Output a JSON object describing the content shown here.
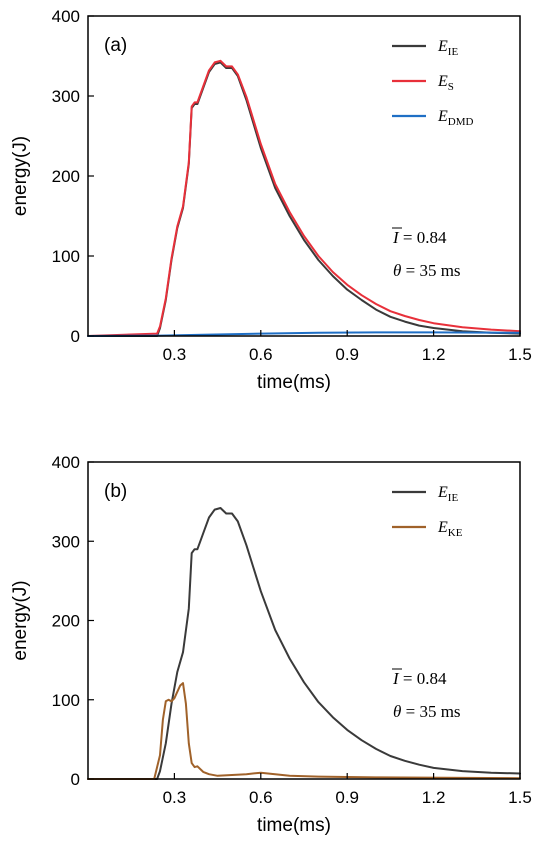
{
  "chart_data": [
    {
      "type": "line",
      "panel_label": "(a)",
      "xlabel": "time(ms)",
      "ylabel": "energy(J)",
      "xlim": [
        0,
        1.5
      ],
      "ylim": [
        0,
        400
      ],
      "xticks": [
        "0.3",
        "0.6",
        "0.9",
        "1.2",
        "1.5"
      ],
      "xtick_values": [
        0.3,
        0.6,
        0.9,
        1.2,
        1.5
      ],
      "yticks": [
        "0",
        "100",
        "200",
        "300",
        "400"
      ],
      "ytick_values": [
        0,
        100,
        200,
        300,
        400
      ],
      "grid": false,
      "legend_position": "top-right",
      "annotations": [
        {
          "symbol": "I",
          "text": " = 0.84"
        },
        {
          "symbol": "θ",
          "text": " = 35 ms"
        }
      ],
      "series": [
        {
          "name": "E",
          "name_sub": "IE",
          "color": "#3a3a3a",
          "x": [
            0,
            0.24,
            0.25,
            0.27,
            0.29,
            0.31,
            0.33,
            0.35,
            0.36,
            0.37,
            0.38,
            0.39,
            0.4,
            0.42,
            0.44,
            0.46,
            0.48,
            0.5,
            0.52,
            0.55,
            0.6,
            0.65,
            0.7,
            0.75,
            0.8,
            0.85,
            0.9,
            0.95,
            1.0,
            1.05,
            1.1,
            1.15,
            1.2,
            1.3,
            1.4,
            1.5
          ],
          "y": [
            0,
            0,
            10,
            45,
            95,
            135,
            160,
            215,
            285,
            290,
            290,
            300,
            310,
            330,
            340,
            342,
            335,
            335,
            325,
            295,
            235,
            185,
            150,
            120,
            95,
            75,
            58,
            45,
            33,
            24,
            18,
            13,
            10,
            6,
            4,
            3
          ]
        },
        {
          "name": "E",
          "name_sub": "S",
          "color": "#e8303a",
          "x": [
            0,
            0.24,
            0.25,
            0.27,
            0.29,
            0.31,
            0.33,
            0.35,
            0.36,
            0.37,
            0.38,
            0.39,
            0.4,
            0.42,
            0.44,
            0.46,
            0.48,
            0.5,
            0.52,
            0.55,
            0.6,
            0.65,
            0.7,
            0.75,
            0.8,
            0.85,
            0.9,
            0.95,
            1.0,
            1.05,
            1.1,
            1.15,
            1.2,
            1.3,
            1.4,
            1.5
          ],
          "y": [
            0,
            3,
            12,
            47,
            97,
            137,
            162,
            217,
            287,
            292,
            292,
            302,
            312,
            332,
            342,
            344,
            337,
            337,
            327,
            299,
            240,
            190,
            155,
            125,
            100,
            80,
            64,
            51,
            40,
            31,
            25,
            20,
            16,
            11,
            8,
            6
          ]
        },
        {
          "name": "E",
          "name_sub": "DMD",
          "color": "#1f6fc5",
          "x": [
            0,
            0.25,
            0.4,
            0.6,
            0.8,
            1.0,
            1.2,
            1.5
          ],
          "y": [
            0,
            0.5,
            1.5,
            3,
            4,
            4.5,
            4.5,
            4
          ]
        }
      ]
    },
    {
      "type": "line",
      "panel_label": "(b)",
      "xlabel": "time(ms)",
      "ylabel": "energy(J)",
      "xlim": [
        0,
        1.5
      ],
      "ylim": [
        0,
        400
      ],
      "xticks": [
        "0.3",
        "0.6",
        "0.9",
        "1.2",
        "1.5"
      ],
      "xtick_values": [
        0.3,
        0.6,
        0.9,
        1.2,
        1.5
      ],
      "yticks": [
        "0",
        "100",
        "200",
        "300",
        "400"
      ],
      "ytick_values": [
        0,
        100,
        200,
        300,
        400
      ],
      "grid": false,
      "legend_position": "top-right",
      "annotations": [
        {
          "symbol": "I",
          "text": " = 0.84"
        },
        {
          "symbol": "θ",
          "text": " = 35 ms"
        }
      ],
      "series": [
        {
          "name": "E",
          "name_sub": "IE",
          "color": "#3a3a3a",
          "x": [
            0,
            0.24,
            0.25,
            0.27,
            0.29,
            0.31,
            0.33,
            0.35,
            0.36,
            0.37,
            0.38,
            0.39,
            0.4,
            0.42,
            0.44,
            0.46,
            0.48,
            0.5,
            0.52,
            0.55,
            0.6,
            0.65,
            0.7,
            0.75,
            0.8,
            0.85,
            0.9,
            0.95,
            1.0,
            1.05,
            1.1,
            1.15,
            1.2,
            1.3,
            1.4,
            1.5
          ],
          "y": [
            0,
            0,
            10,
            45,
            95,
            135,
            160,
            215,
            285,
            290,
            290,
            300,
            310,
            330,
            340,
            342,
            335,
            335,
            325,
            295,
            237,
            188,
            152,
            122,
            97,
            78,
            62,
            49,
            38,
            29,
            23,
            18,
            14,
            10,
            8,
            7
          ]
        },
        {
          "name": "E",
          "name_sub": "KE",
          "color": "#a0622a",
          "x": [
            0,
            0.23,
            0.25,
            0.26,
            0.27,
            0.28,
            0.29,
            0.3,
            0.31,
            0.32,
            0.33,
            0.34,
            0.35,
            0.36,
            0.37,
            0.38,
            0.4,
            0.42,
            0.45,
            0.5,
            0.55,
            0.6,
            0.65,
            0.7,
            0.8,
            1.0,
            1.5
          ],
          "y": [
            0,
            0,
            30,
            75,
            98,
            100,
            98,
            102,
            110,
            118,
            121,
            95,
            45,
            20,
            15,
            16,
            9,
            6,
            4,
            5,
            6,
            8,
            6,
            4,
            3,
            2,
            1
          ]
        }
      ]
    }
  ]
}
